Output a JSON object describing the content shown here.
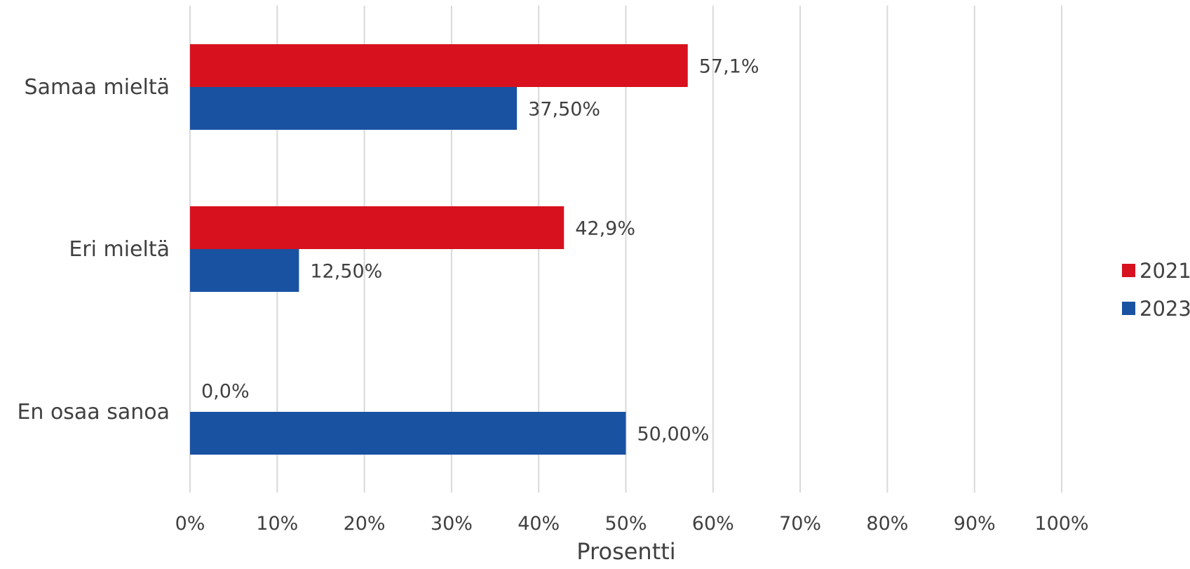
{
  "chart_data": {
    "type": "bar",
    "orientation": "horizontal",
    "categories": [
      "Samaa mieltä",
      "Eri mieltä",
      "En osaa sanoa"
    ],
    "series": [
      {
        "name": "2021",
        "color": "#d7111e",
        "values": [
          57.1,
          42.9,
          0.0
        ],
        "labels": [
          "57,1%",
          "42,9%",
          "0,0%"
        ]
      },
      {
        "name": "2023",
        "color": "#1a52a2",
        "values": [
          37.5,
          12.5,
          50.0
        ],
        "labels": [
          "37,50%",
          "12,50%",
          "50,00%"
        ]
      }
    ],
    "xlabel": "Prosentti",
    "ylabel": "",
    "xlim": [
      0,
      100
    ],
    "xticks": [
      0,
      10,
      20,
      30,
      40,
      50,
      60,
      70,
      80,
      90,
      100
    ],
    "xtick_labels": [
      "0%",
      "10%",
      "20%",
      "30%",
      "40%",
      "50%",
      "60%",
      "70%",
      "80%",
      "90%",
      "100%"
    ],
    "grid": "vertical",
    "legend": "right"
  }
}
